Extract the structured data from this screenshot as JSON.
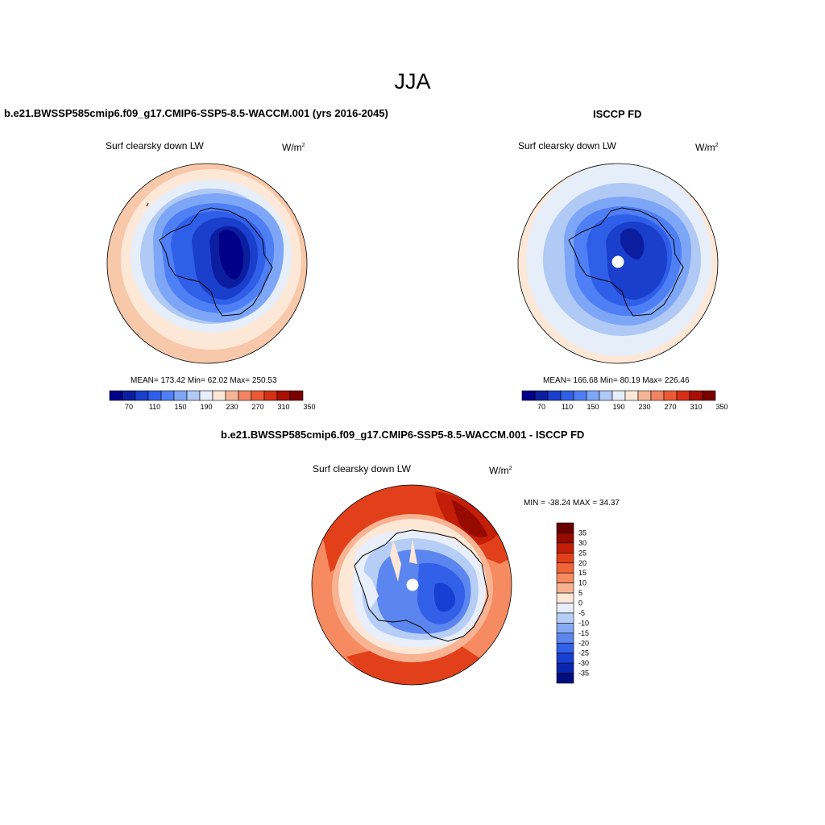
{
  "title": "JJA",
  "panels": [
    {
      "title": "b.e21.BWSSP585cmip6.f09_g17.CMIP6-SSP5-8.5-WACCM.001 (yrs 2016-2045)",
      "variable": "Surf clearsky down LW",
      "units": "W/m",
      "units_exp": "2",
      "stats": "MEAN= 173.42  Min=  62.02  Max= 250.53"
    },
    {
      "title": "ISCCP FD",
      "variable": "Surf clearsky down LW",
      "units": "W/m",
      "units_exp": "2",
      "stats": "MEAN= 166.68  Min=  80.19  Max= 226.46"
    },
    {
      "title": "b.e21.BWSSP585cmip6.f09_g17.CMIP6-SSP5-8.5-WACCM.001 - ISCCP FD",
      "variable": "Surf clearsky down LW",
      "units": "W/m",
      "units_exp": "2",
      "stats": "MIN = -38.24 MAX =  34.37"
    }
  ],
  "colors": {
    "blue_red_13": [
      "#000088",
      "#0c1ea0",
      "#1a3fcc",
      "#2f5fe8",
      "#4e7ff5",
      "#7ea6f7",
      "#b0c9f5",
      "#e6eefa",
      "#fde8d8",
      "#f6b596",
      "#f28462",
      "#ec5a33",
      "#d52f14",
      "#a80f05",
      "#7a0000"
    ],
    "diff_15": [
      "#6b0000",
      "#960a00",
      "#c21e08",
      "#e2401a",
      "#f06438",
      "#f68a60",
      "#f8b392",
      "#fde7d6",
      "#e8eefa",
      "#b6cdf6",
      "#86a9f3",
      "#5b85ef",
      "#3360e9",
      "#1640d4",
      "#0a26b0",
      "#000f80"
    ]
  },
  "colorbars": {
    "abs_labels": [
      "70",
      "110",
      "150",
      "190",
      "230",
      "270",
      "310",
      "350"
    ],
    "diff_labels": [
      "35",
      "30",
      "25",
      "20",
      "15",
      "10",
      "5",
      "0",
      "-5",
      "-10",
      "-15",
      "-20",
      "-25",
      "-30",
      "-35"
    ]
  }
}
